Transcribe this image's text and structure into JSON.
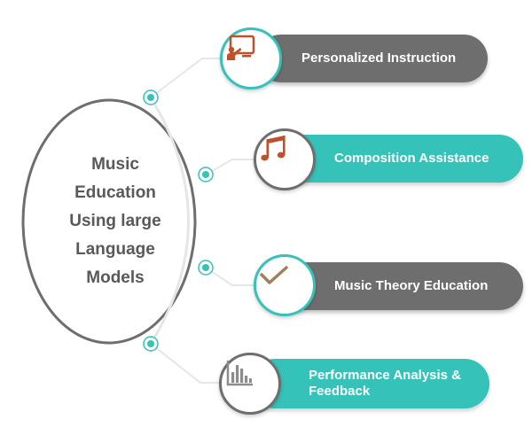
{
  "center": {
    "lines": [
      "Music",
      "Education",
      "Using large",
      "Language",
      "Models"
    ]
  },
  "items": [
    {
      "label": "Personalized Instruction",
      "icon": "presentation-board-icon",
      "style": "gray"
    },
    {
      "label": "Composition Assistance",
      "icon": "music-note-icon",
      "style": "teal"
    },
    {
      "label": "Music Theory Education",
      "icon": "checkmark-icon",
      "style": "gray"
    },
    {
      "label": "Performance Analysis & Feedback",
      "icon": "bar-chart-icon",
      "style": "teal"
    }
  ],
  "colors": {
    "teal": "#35c2b8",
    "gray": "#6e6e6e",
    "icon_brown": "#c0502a",
    "icon_tan": "#a0825a",
    "text_gray": "#595959"
  }
}
